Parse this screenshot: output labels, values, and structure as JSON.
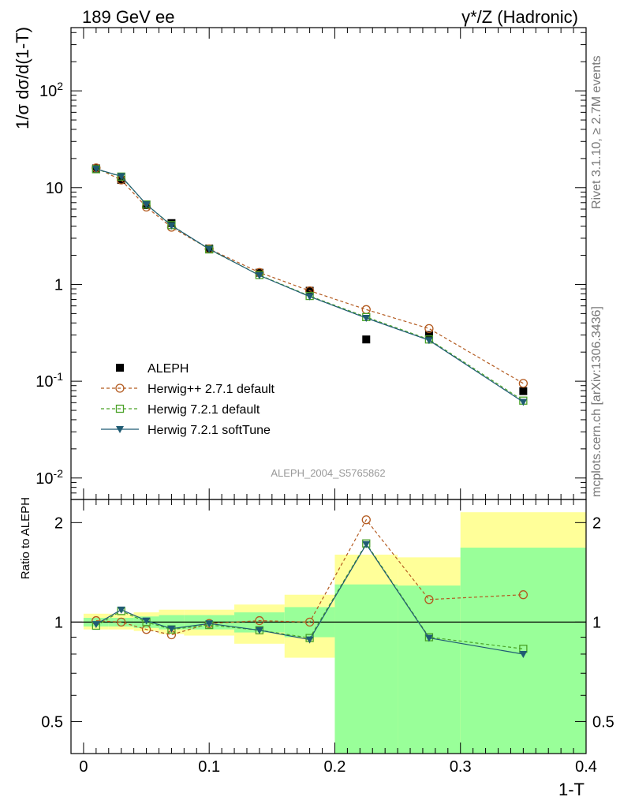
{
  "header": {
    "left_title": "189 GeV ee",
    "right_title": "γ*/Z (Hadronic)"
  },
  "side_labels": {
    "rivet": "Rivet 3.1.10, ≥ 2.7M events",
    "mcplots": "mcplots.cern.ch [arXiv:1306.3436]"
  },
  "watermark": "ALEPH_2004_S5765862",
  "chart_data": [
    {
      "type": "line",
      "panel": "main",
      "ylabel": "1/σ  dσ/d(1-T)",
      "yscale": "log",
      "xlim": [
        -0.01,
        0.4
      ],
      "ylim": [
        0.006,
        450
      ],
      "ytick_labels": [
        {
          "v": 0.01,
          "base": "10",
          "exp": "-2"
        },
        {
          "v": 0.1,
          "base": "10",
          "exp": "-1"
        },
        {
          "v": 1,
          "base": "1",
          "exp": ""
        },
        {
          "v": 10,
          "base": "10",
          "exp": ""
        },
        {
          "v": 100,
          "base": "10",
          "exp": "2"
        }
      ],
      "legend_position": "bottom-left",
      "series": [
        {
          "name": "ALEPH",
          "color": "#000000",
          "marker": "square-filled",
          "line": "none",
          "x": [
            0.01,
            0.03,
            0.05,
            0.07,
            0.1,
            0.14,
            0.18,
            0.225,
            0.275,
            0.35
          ],
          "y": [
            15.8,
            12.0,
            6.6,
            4.3,
            2.35,
            1.32,
            0.86,
            0.27,
            0.3,
            0.079
          ]
        },
        {
          "name": "Herwig++ 2.7.1 default",
          "color": "#b35a1f",
          "marker": "circle-open",
          "line": "dashed",
          "x": [
            0.01,
            0.03,
            0.05,
            0.07,
            0.1,
            0.14,
            0.18,
            0.225,
            0.275,
            0.35
          ],
          "y": [
            16.0,
            12.0,
            6.3,
            3.9,
            2.33,
            1.33,
            0.86,
            0.55,
            0.35,
            0.095
          ]
        },
        {
          "name": "Herwig 7.2.1 default",
          "color": "#4aa228",
          "marker": "square-open",
          "line": "dashed",
          "x": [
            0.01,
            0.03,
            0.05,
            0.07,
            0.1,
            0.14,
            0.18,
            0.225,
            0.275,
            0.35
          ],
          "y": [
            15.5,
            13.0,
            6.7,
            4.1,
            2.3,
            1.25,
            0.76,
            0.46,
            0.27,
            0.063
          ]
        },
        {
          "name": "Herwig 7.2.1 softTune",
          "color": "#1f5b73",
          "marker": "triangle-down",
          "line": "solid",
          "x": [
            0.01,
            0.03,
            0.05,
            0.07,
            0.1,
            0.14,
            0.18,
            0.225,
            0.275,
            0.35
          ],
          "y": [
            15.6,
            13.1,
            6.7,
            4.05,
            2.32,
            1.24,
            0.75,
            0.45,
            0.265,
            0.061
          ]
        }
      ]
    },
    {
      "type": "line",
      "panel": "ratio",
      "xlabel": "1-T",
      "ylabel": "Ratio to ALEPH",
      "yscale": "log",
      "xlim": [
        -0.01,
        0.4
      ],
      "ylim": [
        0.4,
        2.35
      ],
      "xtick_labels": [
        "0",
        "0.1",
        "0.2",
        "0.3",
        "0.4"
      ],
      "xticks": [
        0,
        0.1,
        0.2,
        0.3,
        0.4
      ],
      "ytick_labels": [
        "0.5",
        "1",
        "2"
      ],
      "yticks": [
        0.5,
        1,
        2
      ],
      "bands": [
        {
          "x0": 0.0,
          "x1": 0.02,
          "y_lo_inner": 0.97,
          "y_hi_inner": 1.03,
          "y_lo_outer": 0.95,
          "y_hi_outer": 1.06
        },
        {
          "x0": 0.02,
          "x1": 0.04,
          "y_lo_inner": 0.97,
          "y_hi_inner": 1.03,
          "y_lo_outer": 0.95,
          "y_hi_outer": 1.06
        },
        {
          "x0": 0.04,
          "x1": 0.06,
          "y_lo_inner": 0.96,
          "y_hi_inner": 1.04,
          "y_lo_outer": 0.94,
          "y_hi_outer": 1.07
        },
        {
          "x0": 0.06,
          "x1": 0.08,
          "y_lo_inner": 0.95,
          "y_hi_inner": 1.05,
          "y_lo_outer": 0.92,
          "y_hi_outer": 1.09
        },
        {
          "x0": 0.08,
          "x1": 0.12,
          "y_lo_inner": 0.95,
          "y_hi_inner": 1.05,
          "y_lo_outer": 0.91,
          "y_hi_outer": 1.09
        },
        {
          "x0": 0.12,
          "x1": 0.16,
          "y_lo_inner": 0.93,
          "y_hi_inner": 1.07,
          "y_lo_outer": 0.86,
          "y_hi_outer": 1.13
        },
        {
          "x0": 0.16,
          "x1": 0.2,
          "y_lo_inner": 0.9,
          "y_hi_inner": 1.11,
          "y_lo_outer": 0.78,
          "y_hi_outer": 1.21
        },
        {
          "x0": 0.2,
          "x1": 0.25,
          "y_lo_inner": 0.4,
          "y_hi_inner": 1.3,
          "y_lo_outer": 0.4,
          "y_hi_outer": 1.6
        },
        {
          "x0": 0.25,
          "x1": 0.3,
          "y_lo_inner": 0.4,
          "y_hi_inner": 1.29,
          "y_lo_outer": 0.4,
          "y_hi_outer": 1.57
        },
        {
          "x0": 0.3,
          "x1": 0.4,
          "y_lo_inner": 0.4,
          "y_hi_inner": 1.68,
          "y_lo_outer": 0.4,
          "y_hi_outer": 2.15
        }
      ],
      "band_colors": {
        "inner": "#99ff99",
        "outer": "#ffff99"
      },
      "series": [
        {
          "name": "Herwig++ 2.7.1 default",
          "color": "#b35a1f",
          "marker": "circle-open",
          "line": "dashed",
          "x": [
            0.01,
            0.03,
            0.05,
            0.07,
            0.1,
            0.14,
            0.18,
            0.225,
            0.275,
            0.35
          ],
          "y": [
            1.01,
            1.0,
            0.95,
            0.915,
            0.99,
            1.01,
            1.0,
            2.04,
            1.17,
            1.21
          ]
        },
        {
          "name": "Herwig 7.2.1 default",
          "color": "#4aa228",
          "marker": "square-open",
          "line": "dashed",
          "x": [
            0.01,
            0.03,
            0.05,
            0.07,
            0.1,
            0.14,
            0.18,
            0.225,
            0.275,
            0.35
          ],
          "y": [
            0.975,
            1.08,
            1.0,
            0.95,
            0.98,
            0.945,
            0.895,
            1.73,
            0.9,
            0.83
          ]
        },
        {
          "name": "Herwig 7.2.1 softTune",
          "color": "#1f5b73",
          "marker": "triangle-down",
          "line": "solid",
          "x": [
            0.01,
            0.03,
            0.05,
            0.07,
            0.1,
            0.14,
            0.18,
            0.225,
            0.275,
            0.35
          ],
          "y": [
            0.985,
            1.09,
            1.01,
            0.955,
            0.99,
            0.945,
            0.885,
            1.72,
            0.895,
            0.8
          ]
        }
      ]
    }
  ]
}
